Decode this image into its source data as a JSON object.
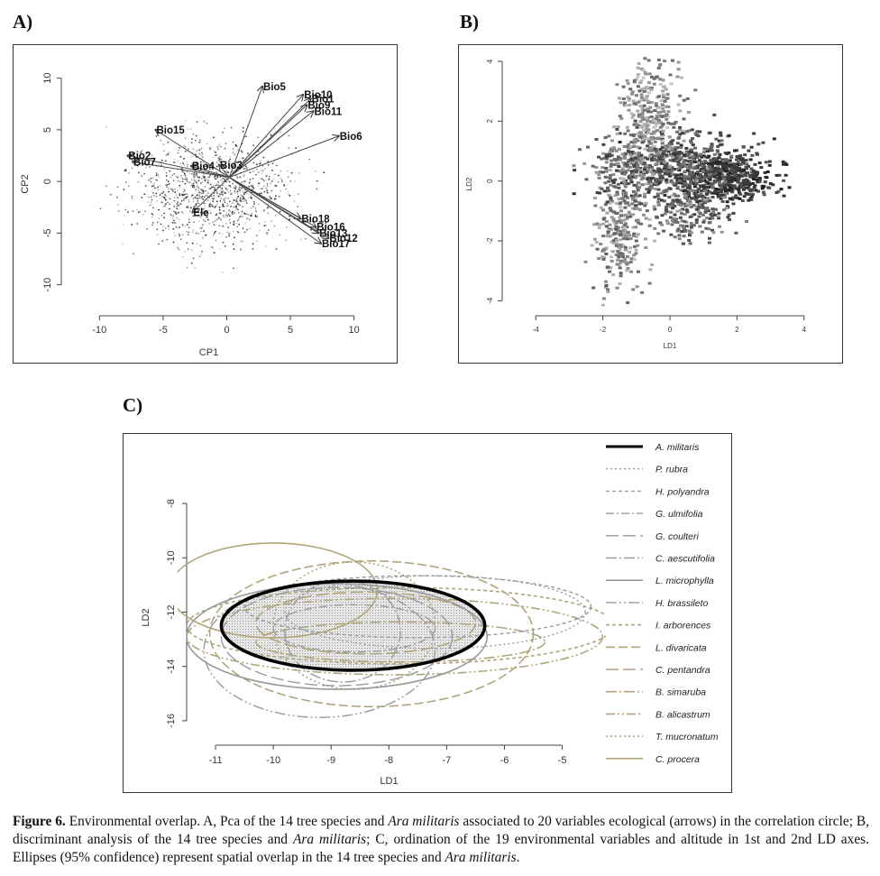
{
  "panels": {
    "a_label": "A)",
    "b_label": "B)",
    "c_label": "C)"
  },
  "chart_data": [
    {
      "type": "scatter",
      "panel": "A",
      "xlabel": "CP1",
      "ylabel": "CP2",
      "xlim": [
        -13,
        13
      ],
      "ylim": [
        -13,
        12.5
      ],
      "xticks": [
        -10,
        -5,
        0,
        5,
        10
      ],
      "yticks": [
        -10,
        -5,
        0,
        5,
        10
      ],
      "points_note": "dense point cloud of samples",
      "arrows": [
        {
          "label": "Bio5",
          "x": 2.8,
          "y": 9.2
        },
        {
          "label": "Bio10",
          "x": 6.0,
          "y": 8.4
        },
        {
          "label": "Bio1",
          "x": 6.6,
          "y": 8.0
        },
        {
          "label": "Bio9",
          "x": 6.3,
          "y": 7.4
        },
        {
          "label": "Bio11",
          "x": 6.8,
          "y": 6.8
        },
        {
          "label": "Bio6",
          "x": 8.8,
          "y": 4.4
        },
        {
          "label": "Bio15",
          "x": -5.6,
          "y": 5.0
        },
        {
          "label": "Bio2",
          "x": -7.8,
          "y": 2.5
        },
        {
          "label": "Bio7",
          "x": -7.4,
          "y": 1.9
        },
        {
          "label": "Bio4",
          "x": -2.8,
          "y": 1.5
        },
        {
          "label": "Bio3",
          "x": -0.6,
          "y": 1.6
        },
        {
          "label": "Ele",
          "x": -2.7,
          "y": -3.0
        },
        {
          "label": "Bio18",
          "x": 5.8,
          "y": -3.6
        },
        {
          "label": "Bio16",
          "x": 7.0,
          "y": -4.4
        },
        {
          "label": "Bio13",
          "x": 7.2,
          "y": -5.0
        },
        {
          "label": "Bio12",
          "x": 8.0,
          "y": -5.5
        },
        {
          "label": "Bio17",
          "x": 7.4,
          "y": -6.0
        }
      ]
    },
    {
      "type": "scatter",
      "panel": "B",
      "xlabel": "LD1",
      "ylabel": "LD2",
      "xlim": [
        -5,
        5
      ],
      "ylim": [
        -4.5,
        4.3
      ],
      "xticks": [
        -4,
        -2,
        0,
        2,
        4
      ],
      "yticks": [
        -4,
        -2,
        0,
        2,
        4
      ],
      "points_note": "text-labelled points of 14 tree species and Ara militaris"
    },
    {
      "type": "ellipse",
      "panel": "C",
      "xlabel": "LD1",
      "ylabel": "LD2",
      "xlim": [
        -11.5,
        -4.4
      ],
      "ylim": [
        -16.9,
        -7.5
      ],
      "xticks": [
        -11,
        -10,
        -9,
        -8,
        -7,
        -6,
        -5
      ],
      "yticks": [
        -16,
        -14,
        -12,
        -10,
        -8
      ],
      "series": [
        {
          "name": "A. militaris",
          "cx": -8.62,
          "cy": -12.5,
          "rx": 2.28,
          "ry": 2.45,
          "color": "#000000",
          "dash": "",
          "width": 3.6
        },
        {
          "name": "P. rubra",
          "cx": -7.2,
          "cy": -12.0,
          "rx": 2.6,
          "ry": 2.0,
          "color": "#9a9a9a",
          "dash": "2 3",
          "width": 1.4
        },
        {
          "name": "H. polyandra",
          "cx": -7.5,
          "cy": -11.8,
          "rx": 3.0,
          "ry": 1.7,
          "color": "#9a9a9a",
          "dash": "4 3",
          "width": 1.4
        },
        {
          "name": "G. ulmifolia",
          "cx": -8.6,
          "cy": -12.6,
          "rx": 1.4,
          "ry": 1.3,
          "color": "#9a9a9a",
          "dash": "9 3 2 3",
          "width": 1.4
        },
        {
          "name": "G. coulteri",
          "cx": -8.9,
          "cy": -12.9,
          "rx": 2.0,
          "ry": 2.7,
          "color": "#9a9a9a",
          "dash": "14 5",
          "width": 1.4
        },
        {
          "name": "C. aescutifolia",
          "cx": -8.8,
          "cy": -12.7,
          "rx": 1.0,
          "ry": 2.8,
          "color": "#9a9a9a",
          "dash": "12 3 2 3",
          "width": 1.4
        },
        {
          "name": "L. microphylla",
          "cx": -8.9,
          "cy": -12.9,
          "rx": 2.6,
          "ry": 2.9,
          "color": "#9a9a9a",
          "dash": "",
          "width": 1.6
        },
        {
          "name": "H. brassileto",
          "cx": -9.2,
          "cy": -13.4,
          "rx": 2.0,
          "ry": 3.7,
          "color": "#9a9a9a",
          "dash": "12 3 2 3 2 3",
          "width": 1.4
        },
        {
          "name": "I. arborences",
          "cx": -7.8,
          "cy": -12.5,
          "rx": 3.7,
          "ry": 2.1,
          "color": "#b0a57a",
          "dash": "4 3",
          "width": 1.6
        },
        {
          "name": "L. divaricata",
          "cx": -8.3,
          "cy": -12.8,
          "rx": 2.8,
          "ry": 4.0,
          "color": "#b0a57a",
          "dash": "10 4",
          "width": 1.6
        },
        {
          "name": "C. pentandra",
          "cx": -8.4,
          "cy": -12.4,
          "rx": 1.9,
          "ry": 1.7,
          "color": "#b0a57a",
          "dash": "14 5",
          "width": 1.6
        },
        {
          "name": "B. simaruba",
          "cx": -7.8,
          "cy": -13.1,
          "rx": 2.5,
          "ry": 1.1,
          "color": "#b0a57a",
          "dash": "12 3 2 3",
          "width": 1.6
        },
        {
          "name": "B. alicastrum",
          "cx": -7.9,
          "cy": -12.9,
          "rx": 3.6,
          "ry": 2.1,
          "color": "#b0a57a",
          "dash": "10 3 2 3 2 3",
          "width": 1.6
        },
        {
          "name": "T. mucronatum",
          "cx": -8.6,
          "cy": -12.5,
          "rx": 1.4,
          "ry": 3.5,
          "color": "#b0a57a",
          "dash": "2 3",
          "width": 1.6
        },
        {
          "name": "C. procera",
          "cx": -10.0,
          "cy": -11.2,
          "rx": 1.8,
          "ry": 2.6,
          "color": "#b0a57a",
          "dash": "",
          "width": 1.6
        }
      ],
      "legend_placement": "right"
    }
  ],
  "caption": {
    "figure_label": "Figure 6.",
    "text_1": " Environmental overlap. A, Pca of the 14 tree species and ",
    "italic_1": "Ara militaris",
    "text_2": " associated to 20 variables ecological (arrows) in the correlation circle; B, discriminant analysis of the 14 tree species and ",
    "italic_2": "Ara militaris",
    "text_3": "; C, ordination of the 19 environmental variables and altitude in 1st and 2nd LD axes. Ellipses (95% confidence) represent spatial overlap in the 14 tree species and ",
    "italic_3": "Ara militaris",
    "text_4": "."
  }
}
